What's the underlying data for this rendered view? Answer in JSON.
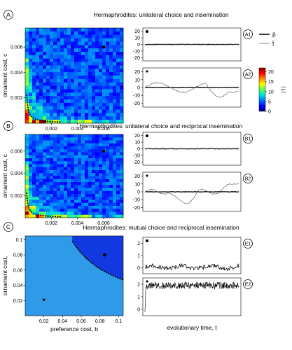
{
  "legend": {
    "mean_p_label": "p̄",
    "mean_t_label": "t̄",
    "colorbar_label": "| t̄ |",
    "colorbar_ticks": [
      "20",
      "15",
      "10",
      "5",
      "0"
    ],
    "colorbar_range": [
      0,
      22
    ],
    "colorbar_colors": [
      "#00008b",
      "#0000ff",
      "#0077ff",
      "#00dddd",
      "#55ff55",
      "#ffff00",
      "#ff8800",
      "#ff0000",
      "#8b0000"
    ]
  },
  "axis_labels": {
    "ornament_cost": "ornament cost, c",
    "ornament_cost_c": "ornament cost,",
    "preference_cost": "preference cost, b",
    "evolutionary_time": "evolutionary time, t"
  },
  "sections": [
    {
      "letter": "A",
      "title": "Hermaphrodites: unilateral choice and insemination",
      "heatmap": {
        "xticks": [
          "0.002",
          "0.004",
          "0.006"
        ],
        "yticks": [
          "0.006",
          "0.004",
          "0.002"
        ],
        "range": [
          0,
          0.0075
        ],
        "marker": [
          0.006,
          0.006
        ]
      },
      "timeseries": [
        {
          "label": "A1",
          "yticks": [
            "20",
            "10",
            "0",
            "-10",
            "-20"
          ],
          "range": [
            -25,
            25
          ]
        },
        {
          "label": "A2",
          "yticks": [
            "20",
            "10",
            "0",
            "-10",
            "-20"
          ],
          "range": [
            -25,
            25
          ]
        }
      ]
    },
    {
      "letter": "B",
      "title": "Hermaphrodites: unilateral choice and reciprocal insemination",
      "heatmap": {
        "xticks": [
          "0.002",
          "0.004",
          "0.006"
        ],
        "yticks": [
          "0.006",
          "0.004",
          "0.002"
        ],
        "range": [
          0,
          0.0075
        ],
        "marker": [
          0.006,
          0.006
        ]
      },
      "timeseries": [
        {
          "label": "B1",
          "yticks": [
            "20",
            "10",
            "0",
            "-10",
            "-20"
          ],
          "range": [
            -25,
            25
          ]
        },
        {
          "label": "B2",
          "yticks": [
            "20",
            "10",
            "0",
            "-10",
            "-20"
          ],
          "range": [
            -25,
            25
          ]
        }
      ]
    },
    {
      "letter": "C",
      "title": "Hermaphrodites: mutual choice and reciprocal insemination",
      "heatmap": {
        "xticks": [
          "0.02",
          "0.04",
          "0.06",
          "0.08",
          "0.1"
        ],
        "yticks": [
          "0.1",
          "0.08",
          "0.06",
          "0.04",
          "0.02"
        ],
        "range": [
          0,
          0.105
        ],
        "marker_upper": [
          0.085,
          0.08
        ],
        "marker_lower": [
          0.02,
          0.021
        ]
      },
      "timeseries": [
        {
          "label": "E1",
          "yticks": [
            "2",
            "1",
            "0"
          ],
          "range": [
            -0.5,
            2.5
          ]
        },
        {
          "label": "E2",
          "yticks": [
            "2",
            "1",
            "0"
          ],
          "range": [
            -0.5,
            2.5
          ]
        }
      ]
    }
  ]
}
